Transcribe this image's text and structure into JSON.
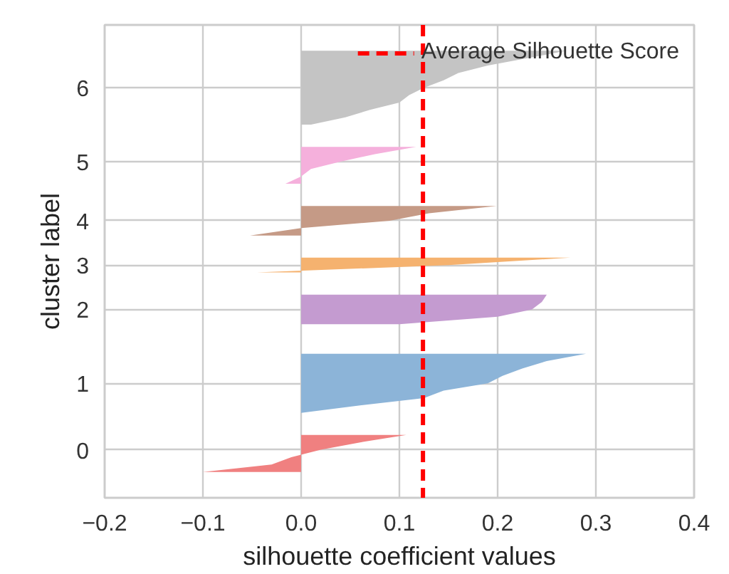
{
  "chart_data": {
    "type": "area",
    "orientation": "horizontal",
    "xlabel": "silhouette coefficient values",
    "ylabel": "cluster label",
    "categories": [
      null,
      null,
      null,
      null,
      null,
      null,
      null,
      null,
      "6",
      null,
      null,
      null,
      null,
      null,
      null,
      null,
      null,
      null,
      "5",
      null,
      null,
      null,
      null,
      null,
      null,
      null,
      "4",
      null,
      null,
      null,
      null,
      null,
      "3",
      null,
      null,
      null,
      null,
      null,
      "2",
      null,
      null,
      null,
      null,
      null,
      null,
      null,
      null,
      null,
      "1",
      null,
      null,
      null,
      null,
      null,
      null,
      null,
      null,
      "0",
      null,
      null,
      null,
      null,
      null,
      null
    ],
    "series": [
      {
        "color": "#c4c4c4",
        "values": [
          null,
          null,
          null,
          0.27,
          0.23,
          0.19,
          0.16,
          0.145,
          0.125,
          0.11,
          0.1,
          0.07,
          0.045,
          0.01,
          null,
          null,
          null,
          null,
          null,
          null,
          null,
          null,
          null,
          null,
          null,
          null,
          null,
          null,
          null,
          null,
          null,
          null,
          null,
          null,
          null,
          null,
          null,
          null,
          null,
          null,
          null,
          null,
          null,
          null,
          null,
          null,
          null,
          null,
          null,
          null,
          null,
          null,
          null,
          null,
          null,
          null,
          null,
          null,
          null,
          null,
          null,
          null,
          null,
          null
        ]
      },
      {
        "color": "#f5b0dc",
        "values": [
          null,
          null,
          null,
          null,
          null,
          null,
          null,
          null,
          null,
          null,
          null,
          null,
          null,
          null,
          null,
          null,
          0.117,
          0.075,
          0.04,
          0.01,
          0.0,
          -0.016,
          null,
          null,
          null,
          null,
          null,
          null,
          null,
          null,
          null,
          null,
          null,
          null,
          null,
          null,
          null,
          null,
          null,
          null,
          null,
          null,
          null,
          null,
          null,
          null,
          null,
          null,
          null,
          null,
          null,
          null,
          null,
          null,
          null,
          null,
          null,
          null,
          null,
          null,
          null,
          null,
          null,
          null
        ]
      },
      {
        "color": "#c59a86",
        "values": [
          null,
          null,
          null,
          null,
          null,
          null,
          null,
          null,
          null,
          null,
          null,
          null,
          null,
          null,
          null,
          null,
          null,
          null,
          null,
          null,
          null,
          null,
          null,
          null,
          0.199,
          0.13,
          0.09,
          0.0,
          -0.052,
          null,
          null,
          null,
          null,
          null,
          null,
          null,
          null,
          null,
          null,
          null,
          null,
          null,
          null,
          null,
          null,
          null,
          null,
          null,
          null,
          null,
          null,
          null,
          null,
          null,
          null,
          null,
          null,
          null,
          null,
          null,
          null,
          null,
          null,
          null
        ]
      },
      {
        "color": "#f5b26f",
        "values": [
          null,
          null,
          null,
          null,
          null,
          null,
          null,
          null,
          null,
          null,
          null,
          null,
          null,
          null,
          null,
          null,
          null,
          null,
          null,
          null,
          null,
          null,
          null,
          null,
          null,
          null,
          null,
          null,
          null,
          null,
          null,
          0.274,
          0.15,
          -0.045,
          null,
          null,
          null,
          null,
          null,
          null,
          null,
          null,
          null,
          null,
          null,
          null,
          null,
          null,
          null,
          null,
          null,
          null,
          null,
          null,
          null,
          null,
          null,
          null,
          null,
          null,
          null,
          null,
          null,
          null
        ]
      },
      {
        "color": "#c49bd0",
        "values": [
          null,
          null,
          null,
          null,
          null,
          null,
          null,
          null,
          null,
          null,
          null,
          null,
          null,
          null,
          null,
          null,
          null,
          null,
          null,
          null,
          null,
          null,
          null,
          null,
          null,
          null,
          null,
          null,
          null,
          null,
          null,
          null,
          null,
          null,
          null,
          null,
          0.25,
          0.245,
          0.235,
          0.2,
          0.1,
          null,
          null,
          null,
          null,
          null,
          null,
          null,
          null,
          null,
          null,
          null,
          null,
          null,
          null,
          null,
          null,
          null,
          null,
          null,
          null,
          null,
          null,
          null
        ]
      },
      {
        "color": "#8cb4d8",
        "values": [
          null,
          null,
          null,
          null,
          null,
          null,
          null,
          null,
          null,
          null,
          null,
          null,
          null,
          null,
          null,
          null,
          null,
          null,
          null,
          null,
          null,
          null,
          null,
          null,
          null,
          null,
          null,
          null,
          null,
          null,
          null,
          null,
          null,
          null,
          null,
          null,
          null,
          null,
          null,
          null,
          null,
          null,
          null,
          null,
          0.29,
          0.25,
          0.225,
          0.205,
          0.19,
          0.145,
          0.125,
          0.06,
          0.0,
          null,
          null,
          null,
          null,
          null,
          null,
          null,
          null,
          null,
          null,
          null
        ]
      },
      {
        "color": "#f08080",
        "values": [
          null,
          null,
          null,
          null,
          null,
          null,
          null,
          null,
          null,
          null,
          null,
          null,
          null,
          null,
          null,
          null,
          null,
          null,
          null,
          null,
          null,
          null,
          null,
          null,
          null,
          null,
          null,
          null,
          null,
          null,
          null,
          null,
          null,
          null,
          null,
          null,
          null,
          null,
          null,
          null,
          null,
          null,
          null,
          null,
          null,
          null,
          null,
          null,
          null,
          null,
          null,
          null,
          null,
          null,
          null,
          0.107,
          0.06,
          0.02,
          -0.01,
          -0.03,
          -0.1,
          null,
          null,
          null
        ]
      }
    ],
    "xlim": [
      -0.2,
      0.4
    ],
    "xticks": [
      {
        "value": -0.2,
        "label": "−0.2"
      },
      {
        "value": -0.1,
        "label": "−0.1"
      },
      {
        "value": 0,
        "label": "0.0"
      },
      {
        "value": 0.1,
        "label": "0.1"
      },
      {
        "value": 0.2,
        "label": "0.2"
      },
      {
        "value": 0.3,
        "label": "0.3"
      },
      {
        "value": 0.4,
        "label": "0.4"
      }
    ],
    "ref_lines": [
      {
        "axis": "x",
        "value": 0.124,
        "label": "Average Silhouette Score",
        "color": "#ff0000",
        "line_style": "dashed"
      }
    ],
    "grid": true,
    "legend": "top right"
  }
}
